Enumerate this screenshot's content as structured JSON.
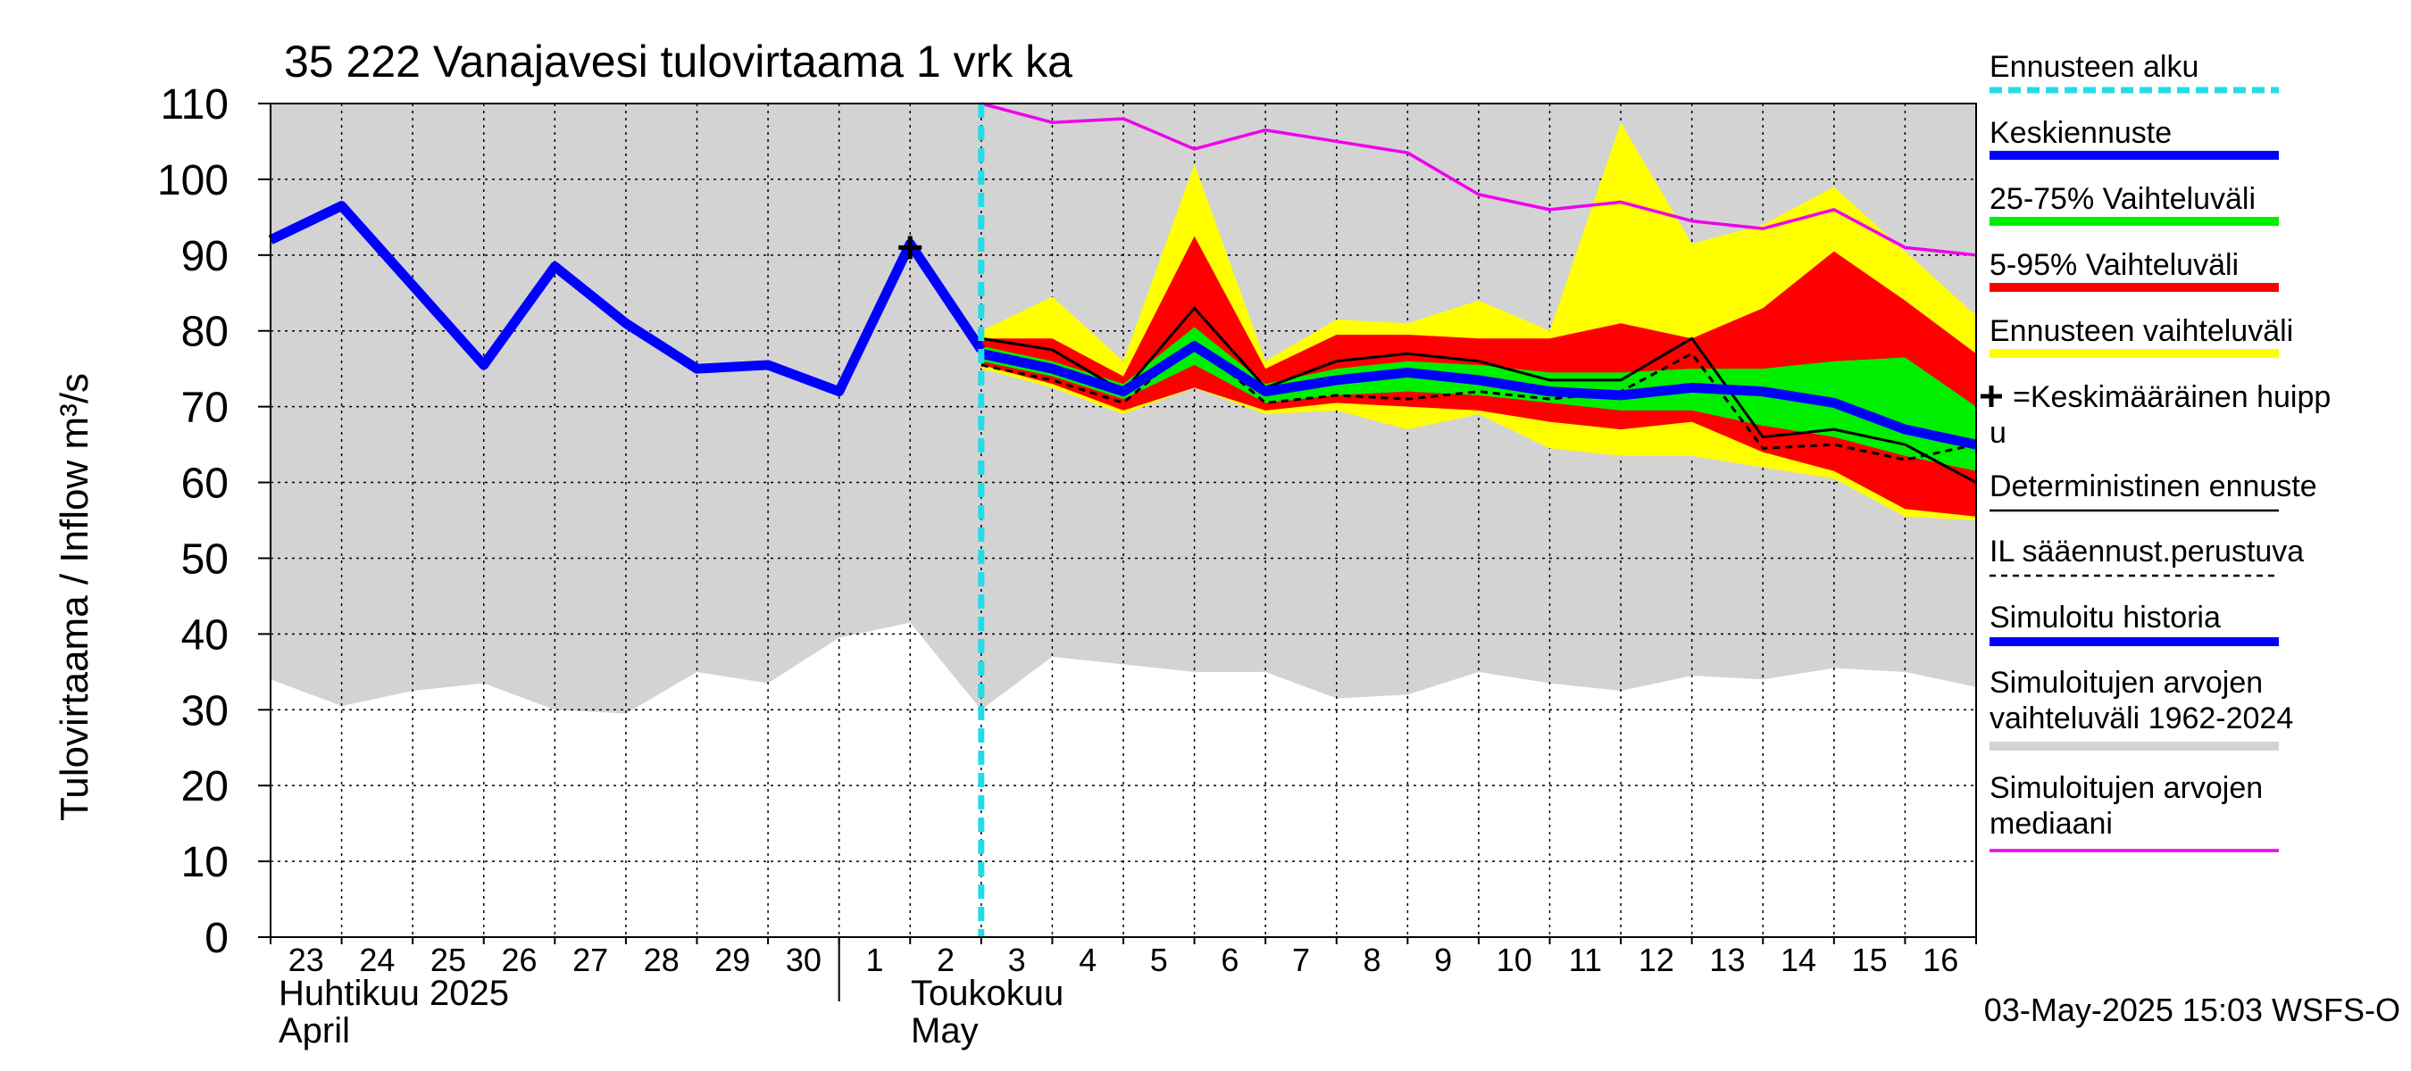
{
  "chart_data": {
    "type": "line",
    "title": "35 222 Vanajavesi tulovirtaama 1 vrk ka",
    "ylabel": "Tulovirtaama / Inflow    m³/s",
    "ylim": [
      0,
      110
    ],
    "yticks": [
      0,
      10,
      20,
      30,
      40,
      50,
      60,
      70,
      80,
      90,
      100,
      110
    ],
    "x_day_count": 24,
    "x_labels": [
      "23",
      "24",
      "25",
      "26",
      "27",
      "28",
      "29",
      "30",
      "1",
      "2",
      "3",
      "4",
      "5",
      "6",
      "7",
      "8",
      "9",
      "10",
      "11",
      "12",
      "13",
      "14",
      "15",
      "16"
    ],
    "month_labels": [
      {
        "fi": "Huhtikuu  2025",
        "en": "April",
        "start_day_index": 0
      },
      {
        "fi": "Toukokuu",
        "en": "May",
        "start_day_index": 8
      }
    ],
    "forecast_start_index": 10,
    "peak_marker": {
      "index": 9,
      "value": 91
    },
    "historical_range": {
      "x": [
        0,
        1,
        2,
        3,
        4,
        5,
        6,
        7,
        8,
        9,
        10,
        11,
        12,
        13,
        14,
        15,
        16,
        17,
        18,
        19,
        20,
        21,
        22,
        23,
        24
      ],
      "low": [
        34,
        30.5,
        32.5,
        33.5,
        30,
        29.5,
        35,
        33.5,
        39.5,
        41.5,
        30,
        37,
        36,
        35,
        35,
        31.5,
        32,
        35,
        33.5,
        32.5,
        34.5,
        34,
        35.5,
        35,
        33
      ],
      "high": [
        110,
        110,
        110,
        110,
        110,
        110,
        110,
        110,
        110,
        110,
        110,
        110,
        110,
        110,
        110,
        110,
        110,
        110,
        110,
        110,
        110,
        110,
        110,
        110,
        110
      ]
    },
    "median_sim": {
      "x": [
        10,
        11,
        12,
        13,
        14,
        15,
        16,
        17,
        18,
        19,
        20,
        21,
        22,
        23,
        24
      ],
      "values": [
        110,
        107.5,
        108,
        104,
        106.5,
        105,
        103.5,
        98,
        96,
        97,
        94.5,
        93.5,
        96,
        91,
        90
      ]
    },
    "forecast_range": {
      "x": [
        10,
        11,
        12,
        13,
        14,
        15,
        16,
        17,
        18,
        19,
        20,
        21,
        22,
        23,
        24
      ],
      "low": [
        75,
        72.5,
        69,
        72.5,
        69,
        69.5,
        67,
        69,
        64.5,
        63.5,
        63.5,
        62,
        60.5,
        55.5,
        55
      ],
      "high": [
        80,
        84.5,
        76,
        102,
        76,
        81.5,
        81,
        84,
        80,
        107.5,
        91.5,
        94,
        99,
        90.5,
        82
      ]
    },
    "range_5_95": {
      "x": [
        10,
        11,
        12,
        13,
        14,
        15,
        16,
        17,
        18,
        19,
        20,
        21,
        22,
        23,
        24
      ],
      "low": [
        75.5,
        73,
        69.5,
        72.5,
        69.5,
        70.5,
        70,
        69.5,
        68,
        67,
        68,
        64,
        61.5,
        56.5,
        55.5
      ],
      "high": [
        79,
        79,
        74,
        92.5,
        75,
        79.5,
        79.5,
        79,
        79,
        81,
        79,
        83,
        90.5,
        84,
        77
      ]
    },
    "range_25_75": {
      "x": [
        10,
        11,
        12,
        13,
        14,
        15,
        16,
        17,
        18,
        19,
        20,
        21,
        22,
        23,
        24
      ],
      "low": [
        76,
        74,
        71,
        75.5,
        70.5,
        71.5,
        72,
        71.5,
        70.5,
        69.5,
        69.5,
        67.5,
        66,
        63.5,
        61.5
      ],
      "high": [
        78,
        76,
        73,
        80.5,
        73,
        75,
        76,
        75.5,
        74.5,
        74.5,
        75,
        75,
        76,
        76.5,
        70
      ]
    },
    "mean_forecast": {
      "x": [
        10,
        11,
        12,
        13,
        14,
        15,
        16,
        17,
        18,
        19,
        20,
        21,
        22,
        23,
        24
      ],
      "values": [
        77,
        75,
        72,
        78,
        72,
        73.5,
        74.5,
        73.5,
        72,
        71.5,
        72.5,
        72,
        70.5,
        67,
        65
      ]
    },
    "deterministic": {
      "x": [
        10,
        11,
        12,
        13,
        14,
        15,
        16,
        17,
        18,
        19,
        20,
        21,
        22,
        23,
        24
      ],
      "values": [
        79,
        77.5,
        72,
        83,
        72.5,
        76,
        77,
        76,
        73.5,
        73.5,
        79,
        66,
        67,
        65,
        60
      ]
    },
    "il_forecast": {
      "x": [
        10,
        11,
        12,
        13,
        14,
        15,
        16,
        17,
        18,
        19,
        20,
        21,
        22,
        23,
        24
      ],
      "values": [
        75.5,
        73.5,
        70.5,
        78.5,
        70.5,
        71.5,
        71,
        72,
        71,
        72,
        77,
        64.5,
        65,
        63,
        65
      ]
    },
    "simulated_history": {
      "x": [
        0,
        1,
        2,
        3,
        4,
        5,
        6,
        7,
        8,
        9,
        10
      ],
      "values": [
        92,
        96.5,
        86,
        75.5,
        88.5,
        81,
        75,
        75.5,
        72,
        91.5,
        77.5
      ]
    },
    "colors": {
      "hist_range": "#d3d3d3",
      "forecast_range": "#ffff00",
      "range_5_95": "#ff0000",
      "range_25_75": "#00ee00",
      "mean": "#0000ff",
      "median": "#ee00ee",
      "forecast_start": "#22dde8",
      "grid": "#000000"
    },
    "legend": [
      {
        "label": "Ennusteen alku",
        "style": "dashed-cyan"
      },
      {
        "label": "Keskiennuste",
        "style": "thick-blue"
      },
      {
        "label": "25-75% Vaihteluväli",
        "style": "thick-green"
      },
      {
        "label": "5-95% Vaihteluväli",
        "style": "thick-red"
      },
      {
        "label": "Ennusteen vaihteluväli",
        "style": "thick-yellow"
      },
      {
        "label": "=Keskimääräinen huipp",
        "label2": "u",
        "style": "plus-marker"
      },
      {
        "label": "Deterministinen ennuste",
        "style": "thin-black"
      },
      {
        "label": "IL sääennust.perustuva",
        "style": "dashed-black"
      },
      {
        "label": "Simuloitu historia",
        "style": "thick-blue"
      },
      {
        "label": "Simuloitujen arvojen",
        "label2": "vaihteluväli 1962-2024",
        "style": "thick-gray"
      },
      {
        "label": "Simuloitujen arvojen",
        "label2": "mediaani",
        "style": "thin-magenta"
      }
    ],
    "timestamp": "03-May-2025 15:03 WSFS-O"
  }
}
